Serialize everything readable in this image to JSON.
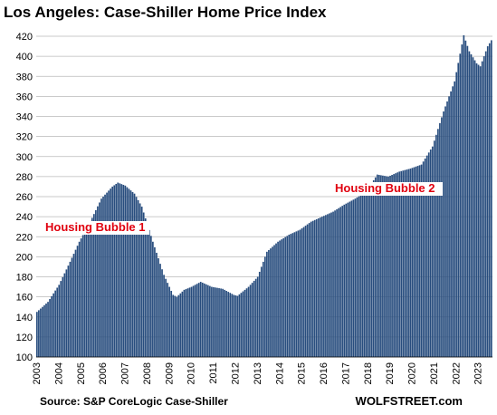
{
  "chart_data": {
    "type": "bar",
    "title": "Los Angeles: Case-Shiller Home Price Index",
    "source": "Source: S&P CoreLogic Case-Shiller",
    "brand": "WOLFSTREET.com",
    "frequency": "monthly",
    "ylim": [
      100,
      420
    ],
    "yticks": [
      100,
      120,
      140,
      160,
      180,
      200,
      220,
      240,
      260,
      280,
      300,
      320,
      340,
      360,
      380,
      400,
      420
    ],
    "xticks": [
      "2003",
      "2004",
      "2005",
      "2006",
      "2007",
      "2008",
      "2009",
      "2010",
      "2011",
      "2012",
      "2013",
      "2014",
      "2015",
      "2016",
      "2017",
      "2018",
      "2019",
      "2020",
      "2021",
      "2022",
      "2023"
    ],
    "grid": true,
    "bar_color": "#284d7e",
    "series": [
      {
        "name": "",
        "anchors": [
          [
            "2003-01",
            145
          ],
          [
            "2003-07",
            155
          ],
          [
            "2004-01",
            172
          ],
          [
            "2004-07",
            195
          ],
          [
            "2004-12",
            215
          ],
          [
            "2005-06",
            235
          ],
          [
            "2005-12",
            258
          ],
          [
            "2006-06",
            270
          ],
          [
            "2006-09",
            274
          ],
          [
            "2007-01",
            271
          ],
          [
            "2007-06",
            263
          ],
          [
            "2007-10",
            250
          ],
          [
            "2008-04",
            215
          ],
          [
            "2008-10",
            182
          ],
          [
            "2009-03",
            162
          ],
          [
            "2009-05",
            160
          ],
          [
            "2009-09",
            167
          ],
          [
            "2010-01",
            170
          ],
          [
            "2010-06",
            175
          ],
          [
            "2010-12",
            170
          ],
          [
            "2011-06",
            168
          ],
          [
            "2011-12",
            162
          ],
          [
            "2012-02",
            161
          ],
          [
            "2012-08",
            170
          ],
          [
            "2013-01",
            180
          ],
          [
            "2013-06",
            205
          ],
          [
            "2013-12",
            215
          ],
          [
            "2014-06",
            222
          ],
          [
            "2014-12",
            227
          ],
          [
            "2015-06",
            235
          ],
          [
            "2015-12",
            240
          ],
          [
            "2016-06",
            245
          ],
          [
            "2016-12",
            252
          ],
          [
            "2017-06",
            258
          ],
          [
            "2017-12",
            265
          ],
          [
            "2018-06",
            282
          ],
          [
            "2018-12",
            280
          ],
          [
            "2019-06",
            285
          ],
          [
            "2019-12",
            288
          ],
          [
            "2020-06",
            292
          ],
          [
            "2020-12",
            310
          ],
          [
            "2021-06",
            345
          ],
          [
            "2021-12",
            375
          ],
          [
            "2022-05",
            421
          ],
          [
            "2022-08",
            405
          ],
          [
            "2022-12",
            393
          ],
          [
            "2023-02",
            390
          ],
          [
            "2023-06",
            410
          ],
          [
            "2023-08",
            416
          ]
        ]
      }
    ],
    "annotations": [
      {
        "text": "Housing Bubble 1",
        "date": "2005-06"
      },
      {
        "text": "Housing Bubble 2",
        "date": "2018-02"
      }
    ]
  }
}
